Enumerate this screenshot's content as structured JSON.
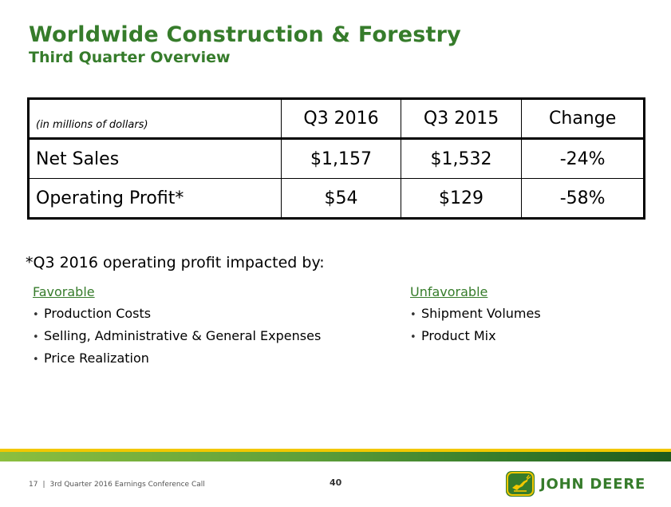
{
  "header": {
    "title": "Worldwide Construction & Forestry",
    "subtitle": "Third Quarter Overview"
  },
  "table": {
    "units_label": "(in millions of dollars)",
    "columns": [
      "Q3 2016",
      "Q3 2015",
      "Change"
    ],
    "rows": [
      {
        "label": "Net Sales",
        "values": [
          "$1,157",
          "$1,532",
          "-24%"
        ]
      },
      {
        "label": "Operating Profit*",
        "values": [
          "$54",
          "$129",
          "-58%"
        ]
      }
    ]
  },
  "impact_note": "*Q3 2016 operating profit impacted by:",
  "favorable": {
    "heading": "Favorable",
    "items": [
      "Production Costs",
      "Selling, Administrative & General Expenses",
      "Price Realization"
    ]
  },
  "unfavorable": {
    "heading": "Unfavorable",
    "items": [
      "Shipment Volumes",
      "Product Mix"
    ]
  },
  "footer": {
    "slide_number": "17",
    "separator": "|",
    "event": "3rd Quarter 2016 Earnings Conference Call",
    "page": "40"
  },
  "logo": {
    "text": "JOHN DEERE",
    "icon": "leaping-deer-icon"
  },
  "colors": {
    "brand_green": "#367c2b",
    "brand_yellow": "#f2c800"
  }
}
